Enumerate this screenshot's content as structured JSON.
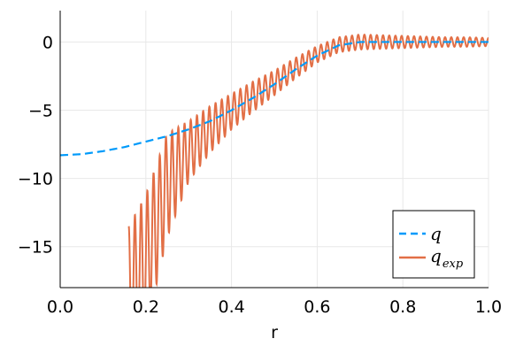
{
  "chart_data": {
    "type": "line",
    "title": "",
    "xlabel": "r",
    "ylabel": "",
    "xlim": [
      0.0,
      1.0
    ],
    "ylim": [
      -18.0,
      2.3
    ],
    "grid": true,
    "legend_position": "bottom-right",
    "x_ticks": [
      0.0,
      0.2,
      0.4,
      0.6,
      0.8,
      1.0
    ],
    "x_tick_labels": [
      "0.0",
      "0.2",
      "0.4",
      "0.6",
      "0.8",
      "1.0"
    ],
    "y_ticks": [
      0,
      -5,
      -10,
      -15
    ],
    "y_tick_labels": [
      "0",
      "−5",
      "−10",
      "−15"
    ],
    "series": [
      {
        "name": "q",
        "style": "dashed",
        "color": "#009AFA",
        "x": [
          0.0,
          0.05,
          0.1,
          0.15,
          0.2,
          0.25,
          0.3,
          0.35,
          0.4,
          0.45,
          0.5,
          0.55,
          0.6,
          0.65,
          0.7,
          0.75,
          0.8,
          0.85,
          0.9,
          0.95,
          1.0
        ],
        "y": [
          -8.3,
          -8.22,
          -8.0,
          -7.7,
          -7.3,
          -6.9,
          -6.4,
          -5.8,
          -5.0,
          -4.1,
          -3.1,
          -2.0,
          -1.0,
          -0.25,
          0.0,
          0.0,
          0.0,
          0.0,
          0.0,
          0.0,
          0.0
        ]
      },
      {
        "name": "q_exp",
        "style": "solid",
        "color": "#E26F46",
        "x": [
          0.16,
          0.2,
          0.25,
          0.3,
          0.35,
          0.4,
          0.45,
          0.5,
          0.55,
          0.6,
          0.65,
          0.7,
          0.75,
          0.8,
          0.85,
          0.9,
          0.95,
          1.0
        ],
        "y_center": [
          -18.5,
          -16.2,
          -10.5,
          -8.0,
          -6.4,
          -5.1,
          -4.0,
          -3.0,
          -1.9,
          -0.9,
          -0.2,
          0.0,
          0.0,
          0.0,
          0.0,
          0.0,
          0.0,
          0.0
        ],
        "amplitude": [
          5.0,
          5.0,
          3.8,
          2.2,
          1.7,
          1.3,
          1.1,
          0.9,
          0.75,
          0.6,
          0.55,
          0.55,
          0.5,
          0.45,
          0.4,
          0.35,
          0.35,
          0.3
        ],
        "oscillation_count": 58
      }
    ]
  },
  "legend": {
    "entries": [
      {
        "symbol": "q",
        "subscript": ""
      },
      {
        "symbol": "q",
        "subscript": "exp"
      }
    ]
  }
}
